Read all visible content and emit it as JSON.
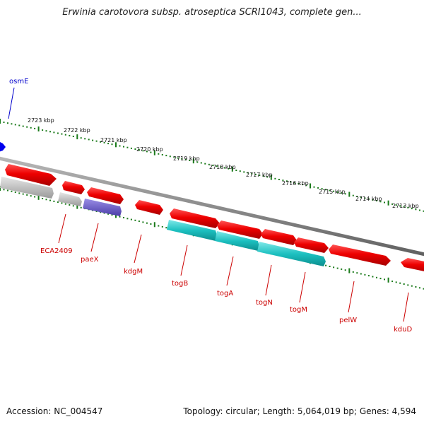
{
  "header": {
    "title": "Erwinia carotovora subsp. atroseptica SCRI1043, complete gen..."
  },
  "footer": {
    "accession": "Accession: NC_004547",
    "stats": "Topology: circular; Length: 5,064,019 bp; Genes: 4,594"
  },
  "colors": {
    "backbone": "#8c8c8c",
    "ruler": "#1a7a1a",
    "gene_red": "#ee0000",
    "gene_gray": "#b0b0b0",
    "gene_purple": "#7060c8",
    "gene_cyan": "#20c4c4",
    "label_red": "#cc0000",
    "label_blue": "#0000cc"
  },
  "ruler_upper": {
    "ticks": [
      "2723 kbp",
      "2722 kbp",
      "2721 kbp",
      "2720 kbp",
      "2719 kbp",
      "2718 kbp",
      "2717 kbp",
      "2716 kbp",
      "2715 kbp",
      "2714 kbp",
      "2713 kbp"
    ]
  },
  "feature_labels": [
    {
      "name": "osmE",
      "color": "blue"
    },
    {
      "name": "ECA2409",
      "color": "red"
    },
    {
      "name": "paeX",
      "color": "red"
    },
    {
      "name": "kdgM",
      "color": "red"
    },
    {
      "name": "togB",
      "color": "red"
    },
    {
      "name": "togA",
      "color": "red"
    },
    {
      "name": "togN",
      "color": "red"
    },
    {
      "name": "togM",
      "color": "red"
    },
    {
      "name": "pelW",
      "color": "red"
    },
    {
      "name": "kduD",
      "color": "red"
    }
  ]
}
